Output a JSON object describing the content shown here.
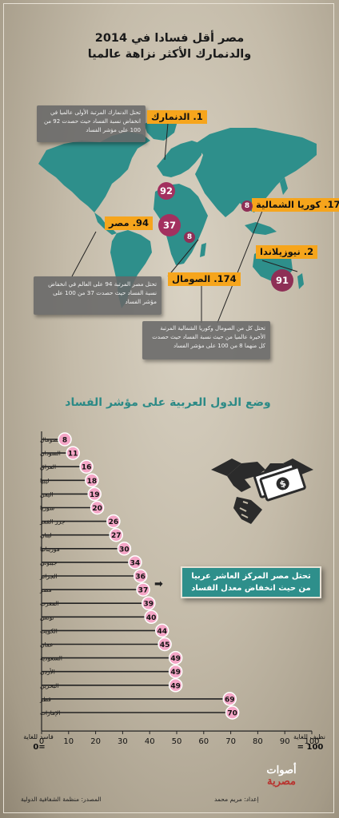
{
  "title": {
    "line1": "مصر أقل فسادا في 2014",
    "line2": "والدنمارك الأكثر نزاهة عالميا"
  },
  "map": {
    "labels": {
      "denmark": "1. الدنمارك",
      "north_korea": "174. كوريا الشمالية",
      "egypt": "94. مصر",
      "new_zealand": "2. نيوزيلاندا",
      "somalia": "174. الصومال"
    },
    "circles": {
      "denmark": "92",
      "egypt": "37",
      "north_korea": "8",
      "somalia": "8",
      "new_zealand": "91"
    },
    "callouts": {
      "denmark": "تحتل الدنمارك المرتبة الأولى عالميا في انخفاض نسبة الفساد حيث حصدت 92 من 100 على مؤشر الفساد",
      "egypt": "تحتل مصر المرتبة 94 على العالم في انخفاض نسبة الفساد حيث حصدت 37 من 100 على مؤشر الفساد",
      "somalia_nk": "تحتل كل من الصومال وكوريا الشمالية المرتبة الأخيرة عالميا من حيث نسبة الفساد حيث حصدت كل منهما 8 من 100 على مؤشر الفساد"
    },
    "colors": {
      "land": "#2e8f8b",
      "tag": "#f6a51c",
      "circle": "#a3305f"
    }
  },
  "section_title": "وضع الدول العربية على مؤشر الفساد",
  "egypt_note": {
    "line1": "تحتل مصر المركز العاشر عربيا",
    "line2": "من حيث انخفاض معدل الفساد"
  },
  "chart_data": {
    "type": "bar",
    "title": "وضع الدول العربية على مؤشر الفساد",
    "categories": [
      "الصومال",
      "السودان",
      "العراق",
      "ليبيا",
      "اليمن",
      "سوريا",
      "جزر القمر",
      "لبنان",
      "موريتانيا",
      "جيبوتي",
      "الجزائر",
      "مصر",
      "المغرب",
      "تونس",
      "الكويت",
      "عمان",
      "السعودية",
      "الأردن",
      "البحرين",
      "قطر",
      "الإمارات"
    ],
    "values": [
      8,
      11,
      16,
      18,
      19,
      20,
      26,
      27,
      30,
      34,
      36,
      37,
      39,
      40,
      44,
      45,
      49,
      49,
      49,
      69,
      70
    ],
    "xticks": [
      0,
      10,
      20,
      30,
      40,
      50,
      60,
      70,
      80,
      90,
      100
    ],
    "xlim": [
      0,
      100
    ],
    "xlabel_left": "فاسد للغاية",
    "xlabel_left_value": "=0",
    "xlabel_right": "نظيف للغاية",
    "xlabel_right_value": "100 =",
    "colors": {
      "bar_line": "#222222",
      "dot": "#f4a6c6",
      "axis": "#222222"
    }
  },
  "credits": {
    "source": "المصدر: منظمة الشفافية الدولية",
    "prepared": "إعداد: مريم محمد",
    "logo_line1": "أصوات",
    "logo_line2": "مصرية"
  }
}
